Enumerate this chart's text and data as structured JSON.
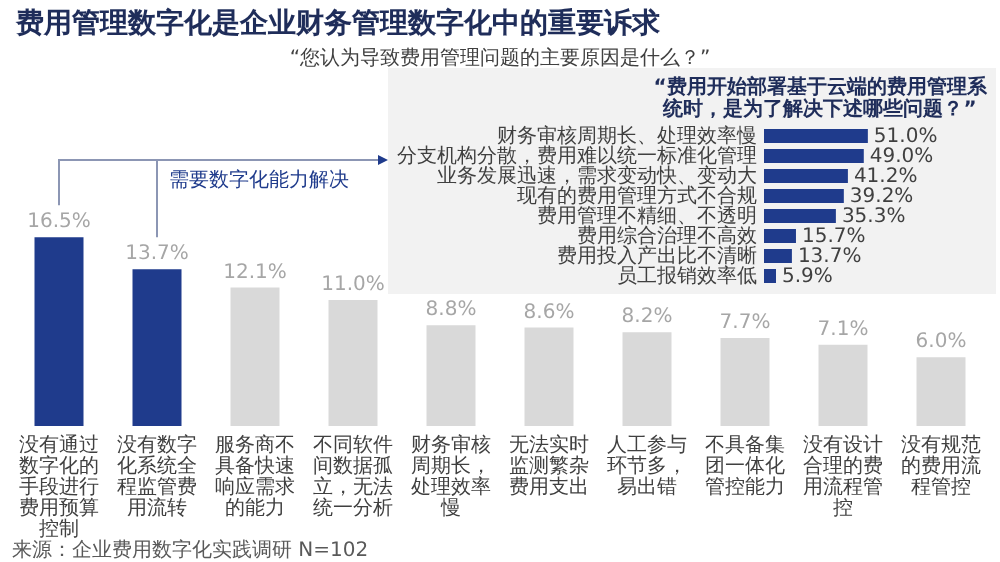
{
  "chart_data": [
    {
      "type": "bar",
      "title": "费用管理数字化是企业财务管理数字化中的重要诉求",
      "subtitle": "“您认为导致费用管理问题的主要原因是什么？”",
      "categories": [
        "没有通过数字化的手段进行费用预算控制",
        "没有数字化系统全程监管费用流转",
        "服务商不具备快速响应需求的能力",
        "不同软件间数据孤立，无法统一分析",
        "财务审核周期长，处理效率慢",
        "无法实时监测繁杂费用支出",
        "人工参与环节多，易出错",
        "不具备集团一体化管控能力",
        "没有设计合理的费用流程管控",
        "没有规范的费用流程管控"
      ],
      "values": [
        16.5,
        13.7,
        12.1,
        11.0,
        8.8,
        8.6,
        8.2,
        7.7,
        7.1,
        6.0
      ],
      "colors": [
        "#1f3b8c",
        "#1f3b8c",
        "#d9d9d9",
        "#d9d9d9",
        "#d9d9d9",
        "#d9d9d9",
        "#d9d9d9",
        "#d9d9d9",
        "#d9d9d9",
        "#d9d9d9"
      ],
      "value_labels": [
        "16.5%",
        "13.7%",
        "12.1%",
        "11.0%",
        "8.8%",
        "8.6%",
        "8.2%",
        "7.7%",
        "7.1%",
        "6.0%"
      ],
      "annotations": [
        "需要数字化能力解决",
        "来源：企业费用数字化实践调研 N=102"
      ]
    },
    {
      "type": "bar",
      "orientation": "horizontal",
      "title": "“费用开始部署基于云端的费用管理系统时，是为了解决下述哪些问题？”",
      "categories": [
        "财务审核周期长、处理效率慢",
        "分支机构分散，费用难以统一标准化管理",
        "业务发展迅速，需求变动快、变动大",
        "现有的费用管理方式不合规",
        "费用管理不精细、不透明",
        "费用综合治理不高效",
        "费用投入产出比不清晰",
        "员工报销效率低"
      ],
      "values": [
        51.0,
        49.0,
        41.2,
        39.2,
        35.3,
        15.7,
        13.7,
        5.9
      ],
      "colors": [
        "#1f3b8c",
        "#1f3b8c",
        "#1f3b8c",
        "#1f3b8c",
        "#1f3b8c",
        "#1f3b8c",
        "#1f3b8c",
        "#1f3b8c"
      ],
      "value_labels": [
        "51.0%",
        "49.0%",
        "41.2%",
        "39.2%",
        "35.3%",
        "15.7%",
        "13.7%",
        "5.9%"
      ]
    }
  ]
}
